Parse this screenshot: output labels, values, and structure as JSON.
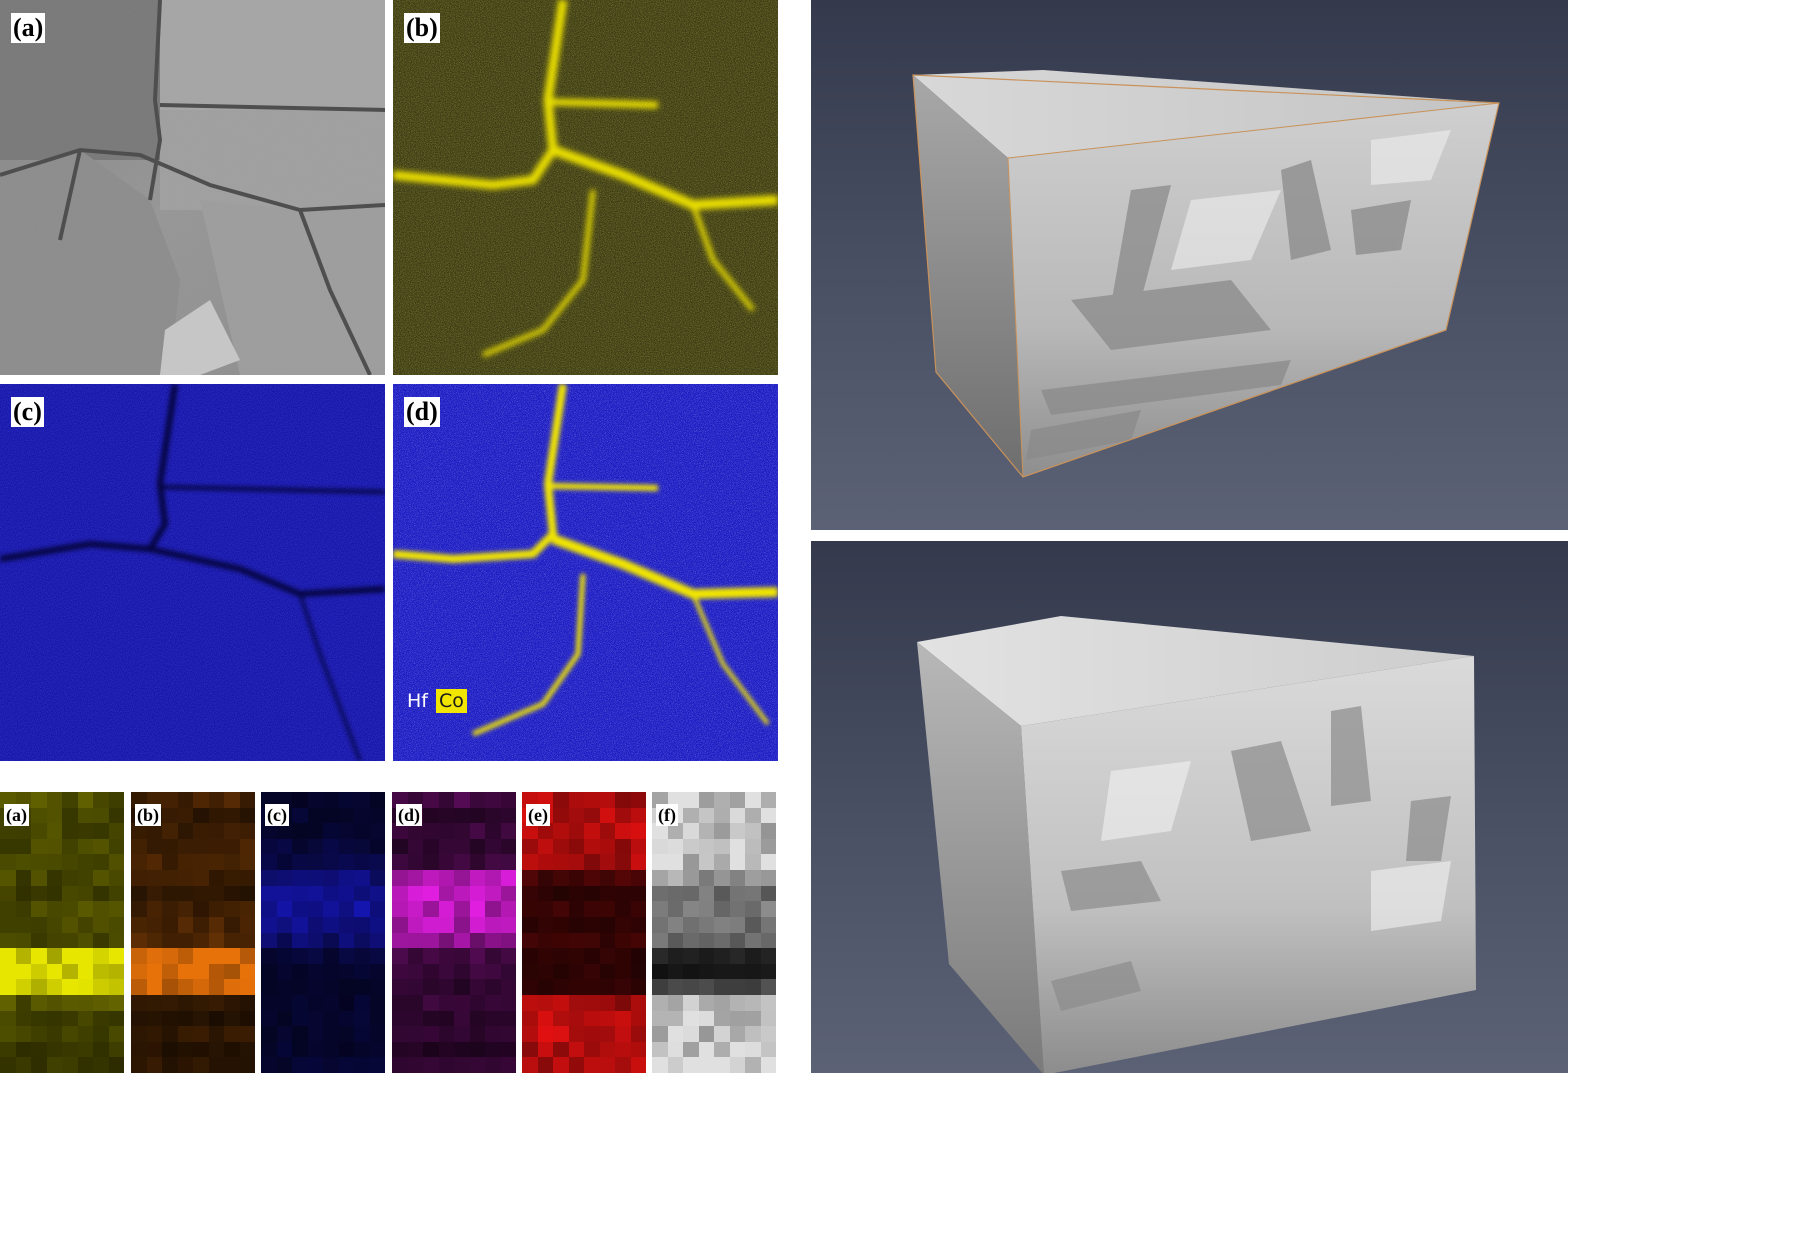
{
  "eds_panels": [
    {
      "label": "(a)",
      "content": "bright-field micrograph",
      "color": "#9a9a9a"
    },
    {
      "label": "(b)",
      "content": "Co map",
      "color": "#f2e600"
    },
    {
      "label": "(c)",
      "content": "Hf map",
      "color": "#1414c8"
    },
    {
      "label": "(d)",
      "content": "Hf + Co overlay",
      "color": "#1f1fd0"
    }
  ],
  "legend": {
    "hf": "Hf",
    "co": "Co",
    "hf_color": "#1f1fd0",
    "co_color": "#f2e600"
  },
  "pixel_maps": [
    {
      "label": "(a)",
      "color": "#e6e600"
    },
    {
      "label": "(b)",
      "color": "#e8720a"
    },
    {
      "label": "(c)",
      "color": "#1a1ae0"
    },
    {
      "label": "(d)",
      "color": "#e01ee0"
    },
    {
      "label": "(e)",
      "color": "#e01010"
    },
    {
      "label": "(f)",
      "color": "#e0e0e0"
    }
  ],
  "renderings": [
    {
      "content": "3D volume rendering with outline"
    },
    {
      "content": "3D volume rendering"
    }
  ]
}
